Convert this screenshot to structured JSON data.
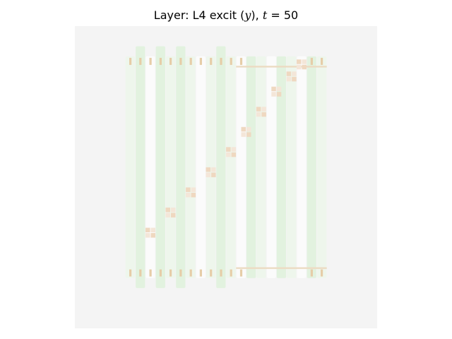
{
  "figure": {
    "title_prefix": "Layer: L4 excit (",
    "title_var": "y",
    "title_mid": "), ",
    "title_t": "t",
    "title_eq": " = 50"
  },
  "chart_data": {
    "type": "heatmap",
    "title": "Layer: L4 excit (y), t = 50",
    "xlabel": "",
    "ylabel": "",
    "grid": false,
    "axes_visible": false,
    "colormap": "diverging orange (positive) – light gray (zero) – green (negative)",
    "colors": {
      "background": "#f4f4f4",
      "green_faint": "#eef6ec",
      "green": "#e2f2df",
      "white": "#fbfbfb",
      "peach_light": "#f4e6d8",
      "peach": "#efd8c0",
      "tan": "#e6cda8",
      "guide": "#ecdcc4"
    },
    "grid_size": [
      30,
      30
    ],
    "columns": [
      {
        "col": 5,
        "shade": "green_faint",
        "rows": [
          3,
          24
        ]
      },
      {
        "col": 6,
        "shade": "green",
        "rows": [
          2,
          25
        ]
      },
      {
        "col": 7,
        "shade": "white",
        "rows": [
          3,
          24
        ]
      },
      {
        "col": 8,
        "shade": "green",
        "rows": [
          2,
          25
        ]
      },
      {
        "col": 9,
        "shade": "green_faint",
        "rows": [
          3,
          24
        ]
      },
      {
        "col": 10,
        "shade": "green",
        "rows": [
          2,
          25
        ]
      },
      {
        "col": 11,
        "shade": "green_faint",
        "rows": [
          3,
          24
        ]
      },
      {
        "col": 12,
        "shade": "white",
        "rows": [
          3,
          24
        ]
      },
      {
        "col": 13,
        "shade": "green_faint",
        "rows": [
          3,
          24
        ]
      },
      {
        "col": 14,
        "shade": "green",
        "rows": [
          2,
          25
        ]
      },
      {
        "col": 15,
        "shade": "green_faint",
        "rows": [
          3,
          24
        ]
      },
      {
        "col": 16,
        "shade": "white",
        "rows": [
          3,
          24
        ]
      },
      {
        "col": 17,
        "shade": "green",
        "rows": [
          3,
          24
        ]
      },
      {
        "col": 18,
        "shade": "green_faint",
        "rows": [
          3,
          24
        ]
      },
      {
        "col": 19,
        "shade": "white",
        "rows": [
          3,
          24
        ]
      },
      {
        "col": 20,
        "shade": "green",
        "rows": [
          3,
          24
        ]
      },
      {
        "col": 21,
        "shade": "green_faint",
        "rows": [
          3,
          24
        ]
      },
      {
        "col": 22,
        "shade": "white",
        "rows": [
          3,
          24
        ]
      },
      {
        "col": 23,
        "shade": "green",
        "rows": [
          3,
          24
        ]
      },
      {
        "col": 24,
        "shade": "green_faint",
        "rows": [
          3,
          24
        ]
      }
    ],
    "peach_marks": [
      {
        "row": 3.5,
        "cols": [
          5,
          6,
          7,
          8,
          9,
          10,
          11,
          12,
          13,
          14,
          15,
          16,
          23,
          24
        ]
      },
      {
        "row": 24.5,
        "cols": [
          5,
          6,
          7,
          8,
          9,
          10,
          11,
          12,
          13,
          14,
          15,
          16,
          23,
          24
        ]
      }
    ],
    "diagonal_blocks": [
      {
        "row": 20.5,
        "col": 7.5
      },
      {
        "row": 18.5,
        "col": 9.5
      },
      {
        "row": 16.5,
        "col": 11.5
      },
      {
        "row": 14.5,
        "col": 13.5
      },
      {
        "row": 12.5,
        "col": 15.5
      },
      {
        "row": 10.5,
        "col": 17.0
      },
      {
        "row": 8.5,
        "col": 18.5
      },
      {
        "row": 6.5,
        "col": 20.0
      },
      {
        "row": 5.0,
        "col": 21.5
      },
      {
        "row": 3.8,
        "col": 22.5
      }
    ],
    "guide_lines": [
      {
        "row": 4,
        "cols": [
          16,
          24
        ]
      },
      {
        "row": 24,
        "cols": [
          16,
          24
        ]
      }
    ]
  }
}
